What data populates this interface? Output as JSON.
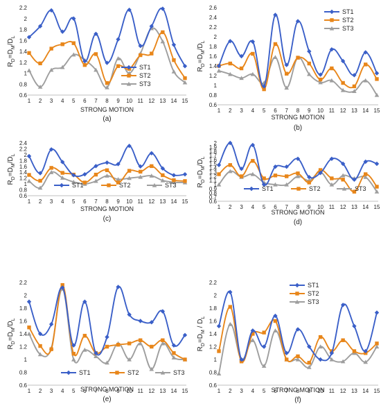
{
  "colors": {
    "ST1": "#3a5fc8",
    "ST2": "#e8861a",
    "ST3": "#9e9e9e"
  },
  "chart_data": [
    {
      "type": "line",
      "panel_label": "(a)",
      "xlabel": "STRONG MOTION",
      "ylabel_main": "R",
      "ylabel_sub": "D",
      "ylabel_mid": "=D",
      "ylabel_sub2": "M",
      "ylabel_end": "/D",
      "ylabel_sub3": "L",
      "categories": [
        "1",
        "2",
        "3",
        "4",
        "5",
        "6",
        "7",
        "8",
        "9",
        "10",
        "11",
        "12",
        "13",
        "14",
        "15"
      ],
      "ylim": [
        0.6,
        2.2
      ],
      "yticks": [
        "0.6",
        "0.8",
        "1",
        "1.2",
        "1.4",
        "1.6",
        "1.8",
        "2",
        "2.2"
      ],
      "legend_position": "right",
      "series": [
        {
          "name": "ST1",
          "values": [
            1.66,
            1.86,
            2.15,
            1.76,
            2.0,
            1.22,
            1.72,
            1.19,
            1.62,
            2.16,
            1.5,
            1.86,
            2.18,
            1.52,
            1.13
          ]
        },
        {
          "name": "ST2",
          "values": [
            1.37,
            1.18,
            1.45,
            1.53,
            1.55,
            1.15,
            1.35,
            0.82,
            1.13,
            1.08,
            1.33,
            1.36,
            1.75,
            1.24,
            0.91
          ]
        },
        {
          "name": "ST3",
          "values": [
            1.05,
            0.75,
            1.06,
            1.11,
            1.34,
            1.24,
            1.06,
            0.74,
            1.27,
            1.0,
            1.36,
            1.82,
            1.58,
            1.03,
            0.83
          ]
        }
      ]
    },
    {
      "type": "line",
      "panel_label": "(b)",
      "xlabel": "STRONG MOTION",
      "ylabel_main": "R",
      "ylabel_sub": "D",
      "ylabel_mid": "=D",
      "ylabel_sub2": "M",
      "ylabel_end": "/D",
      "ylabel_sub3": "L",
      "categories": [
        "1",
        "2",
        "3",
        "4",
        "5",
        "6",
        "7",
        "8",
        "9",
        "10",
        "11",
        "12",
        "13",
        "14",
        "15"
      ],
      "ylim": [
        0.6,
        2.6
      ],
      "yticks": [
        "0.6",
        "0.8",
        "1",
        "1.2",
        "1.4",
        "1.6",
        "1.8",
        "2",
        "2.2",
        "2.4",
        "2.6"
      ],
      "legend_position": "top-right",
      "series": [
        {
          "name": "ST1",
          "values": [
            1.4,
            1.91,
            1.6,
            1.9,
            0.98,
            2.45,
            1.42,
            2.32,
            1.7,
            1.22,
            1.74,
            1.5,
            1.21,
            1.68,
            1.25
          ]
        },
        {
          "name": "ST2",
          "values": [
            1.4,
            1.45,
            1.35,
            1.65,
            0.92,
            1.85,
            1.24,
            1.57,
            1.45,
            1.12,
            1.35,
            1.05,
            0.98,
            1.43,
            1.13
          ]
        },
        {
          "name": "ST3",
          "values": [
            1.3,
            1.23,
            1.15,
            1.23,
            1.05,
            1.58,
            0.95,
            1.57,
            1.23,
            1.06,
            1.1,
            0.9,
            0.88,
            1.1,
            0.8
          ]
        }
      ]
    },
    {
      "type": "line",
      "panel_label": "(c)",
      "xlabel": "STRONG MOTION",
      "ylabel_main": "R",
      "ylabel_sub": "D",
      "ylabel_mid": "=D",
      "ylabel_sub2": "M",
      "ylabel_end": "/D",
      "ylabel_sub3": "L",
      "categories": [
        "1",
        "2",
        "3",
        "4",
        "5",
        "6",
        "7",
        "8",
        "9",
        "10",
        "11",
        "12",
        "13",
        "14",
        "15"
      ],
      "ylim": [
        0.6,
        2.4
      ],
      "yticks": [
        "0.6",
        "0.8",
        "1",
        "1.2",
        "1.4",
        "1.6",
        "1.8",
        "2",
        "2.2",
        "2.4"
      ],
      "legend_position": "bottom",
      "series": [
        {
          "name": "ST1",
          "values": [
            1.95,
            1.37,
            2.18,
            1.75,
            1.3,
            1.33,
            1.61,
            1.73,
            1.68,
            2.3,
            1.6,
            2.05,
            1.53,
            1.3,
            1.33
          ]
        },
        {
          "name": "ST2",
          "values": [
            1.31,
            1.11,
            1.55,
            1.38,
            1.32,
            1.05,
            1.32,
            1.47,
            1.05,
            1.45,
            1.42,
            1.61,
            1.3,
            1.13,
            1.1
          ]
        },
        {
          "name": "ST3",
          "values": [
            1.1,
            0.87,
            1.4,
            1.21,
            1.07,
            1.0,
            1.1,
            1.28,
            1.16,
            1.2,
            1.24,
            1.28,
            1.12,
            1.06,
            1.05
          ]
        }
      ]
    },
    {
      "type": "line",
      "panel_label": "(d)",
      "xlabel": "STRONG MOTION",
      "ylabel_main": "R",
      "ylabel_sub": "D",
      "ylabel_mid": "=D",
      "ylabel_sub2": "M",
      "ylabel_end": "/D",
      "ylabel_sub3": "L",
      "categories": [
        "1",
        "2",
        "3",
        "4",
        "5",
        "6",
        "7",
        "8",
        "9",
        "10",
        "11",
        "12",
        "13",
        "14",
        "15"
      ],
      "ylim": [
        0.6,
        2.0
      ],
      "yticks": [
        "0.6",
        "0.7",
        "0.8",
        "0.9",
        "1",
        "1.1",
        "1.2",
        "1.3",
        "1.4",
        "1.5",
        "1.6",
        "1.7",
        "1.8",
        "1.9",
        "2"
      ],
      "legend_position": "bottom",
      "series": [
        {
          "name": "ST1",
          "values": [
            1.47,
            2.0,
            1.38,
            1.95,
            1.0,
            1.43,
            1.43,
            1.62,
            1.18,
            1.28,
            1.62,
            1.5,
            1.12,
            1.55,
            1.5
          ]
        },
        {
          "name": "ST2",
          "values": [
            1.25,
            1.47,
            1.2,
            1.57,
            1.15,
            1.22,
            1.2,
            1.27,
            1.05,
            1.35,
            1.15,
            1.12,
            0.83,
            1.25,
            0.95
          ]
        },
        {
          "name": "ST3",
          "values": [
            1.0,
            1.32,
            1.18,
            1.25,
            1.05,
            1.0,
            1.0,
            1.2,
            1.1,
            1.3,
            1.0,
            1.22,
            1.15,
            1.18,
            0.83
          ]
        }
      ]
    },
    {
      "type": "line",
      "panel_label": "(e)",
      "xlabel": "STRONG MOTION",
      "ylabel_main": "R",
      "ylabel_sub": "D",
      "ylabel_mid": "=D",
      "ylabel_sub2": "M",
      "ylabel_end": "/D",
      "ylabel_sub3": "L",
      "categories": [
        "1",
        "2",
        "3",
        "4",
        "5",
        "6",
        "7",
        "8",
        "9",
        "10",
        "11",
        "12",
        "13",
        "14",
        "15"
      ],
      "ylim": [
        0.6,
        2.2
      ],
      "yticks": [
        "0.6",
        "0.8",
        "1",
        "1.2",
        "1.4",
        "1.6",
        "1.8",
        "2",
        "2.2"
      ],
      "legend_position": "bottom",
      "series": [
        {
          "name": "ST1",
          "values": [
            1.9,
            1.4,
            1.55,
            2.12,
            1.22,
            1.9,
            1.1,
            1.35,
            2.13,
            1.7,
            1.6,
            1.58,
            1.75,
            1.22,
            1.38
          ]
        },
        {
          "name": "ST2",
          "values": [
            1.5,
            1.21,
            1.16,
            2.16,
            1.09,
            1.37,
            1.1,
            1.2,
            1.23,
            1.25,
            1.3,
            1.2,
            1.3,
            1.1,
            1.0
          ]
        },
        {
          "name": "ST3",
          "values": [
            1.4,
            1.08,
            1.18,
            2.1,
            1.0,
            1.15,
            1.05,
            0.95,
            1.25,
            1.0,
            1.25,
            0.85,
            1.25,
            1.03,
            1.0
          ]
        }
      ]
    },
    {
      "type": "line",
      "panel_label": "(f)",
      "xlabel": "STRONG MOTION",
      "ylabel_main": "R",
      "ylabel_sub": "D",
      "ylabel_mid": "=D",
      "ylabel_sub2": "M",
      "ylabel_end": " / D",
      "ylabel_sub3": "L",
      "categories": [
        "1",
        "2",
        "3",
        "4",
        "5",
        "6",
        "7",
        "8",
        "9",
        "10",
        "11",
        "12",
        "13",
        "14",
        "15"
      ],
      "ylim": [
        0.6,
        2.2
      ],
      "yticks": [
        "0.6",
        "0.8",
        "1",
        "1.2",
        "1.4",
        "1.6",
        "1.8",
        "2",
        "2.2"
      ],
      "legend_position": "top-right",
      "series": [
        {
          "name": "ST1",
          "values": [
            1.52,
            2.05,
            1.0,
            1.45,
            1.2,
            1.68,
            1.1,
            1.47,
            1.2,
            1.0,
            1.1,
            1.85,
            1.52,
            1.13,
            1.73
          ]
        },
        {
          "name": "ST2",
          "values": [
            1.13,
            1.82,
            0.97,
            1.4,
            1.42,
            1.6,
            1.0,
            1.05,
            0.95,
            1.35,
            1.13,
            1.3,
            1.13,
            1.1,
            1.25
          ]
        },
        {
          "name": "ST3",
          "values": [
            0.78,
            1.55,
            1.0,
            1.3,
            0.9,
            1.45,
            1.0,
            1.0,
            0.88,
            1.2,
            1.0,
            0.97,
            1.1,
            0.96,
            1.2
          ]
        }
      ]
    }
  ]
}
